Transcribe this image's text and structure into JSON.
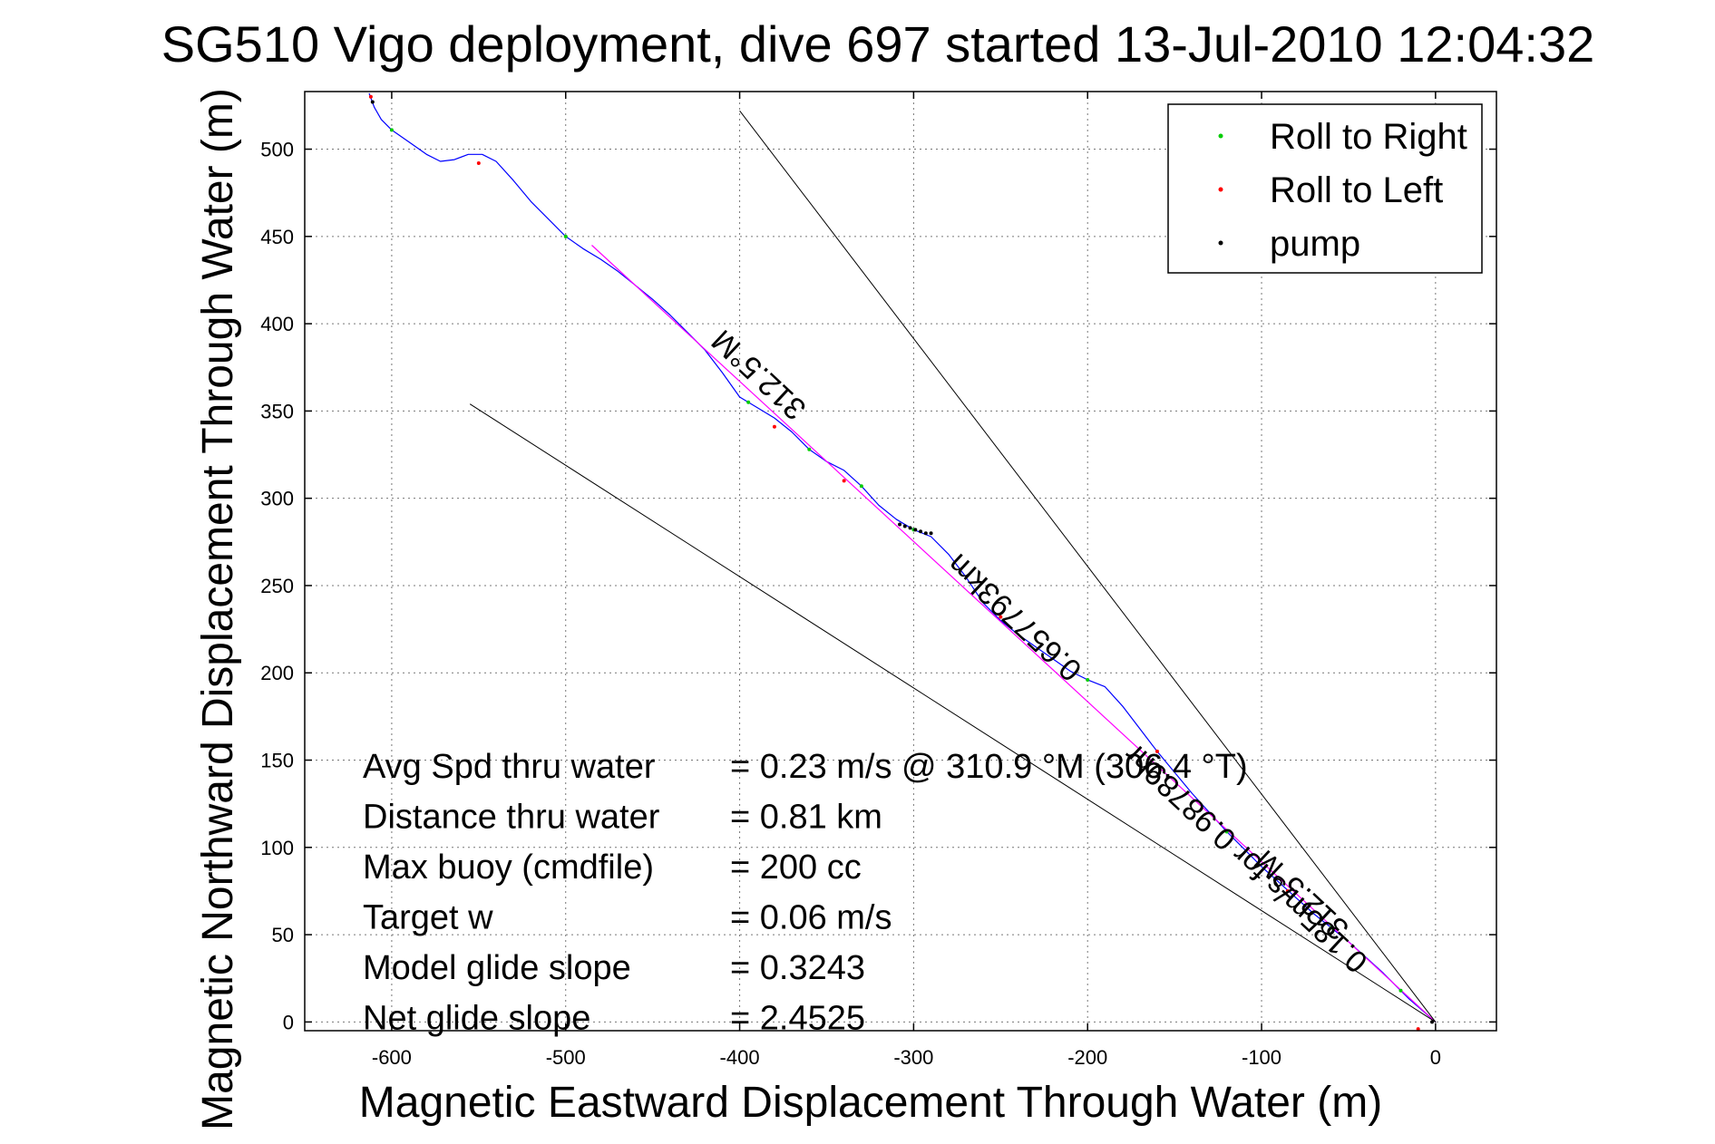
{
  "chart_data": {
    "type": "line",
    "title": "SG510 Vigo deployment, dive 697 started 13-Jul-2010 12:04:32",
    "xlabel": "Magnetic Eastward Displacement Through Water (m)",
    "ylabel": "Magnetic Northward Displacement Through Water (m)",
    "xlim": [
      -650,
      35
    ],
    "ylim": [
      -5,
      533
    ],
    "xticks": [
      -600,
      -500,
      -400,
      -300,
      -200,
      -100,
      0
    ],
    "yticks": [
      0,
      50,
      100,
      150,
      200,
      250,
      300,
      350,
      400,
      450,
      500
    ],
    "xtick_labels": [
      "-600",
      "-500",
      "-400",
      "-300",
      "-200",
      "-100",
      "0"
    ],
    "ytick_labels": [
      "0",
      "50",
      "100",
      "150",
      "200",
      "250",
      "300",
      "350",
      "400",
      "450",
      "500"
    ],
    "grid": true,
    "legend_position": "top-right",
    "legend": [
      {
        "label": "Roll to Right",
        "color": "#00cc00"
      },
      {
        "label": "Roll to Left",
        "color": "#ff0000"
      },
      {
        "label": "pump",
        "color": "#000000"
      }
    ],
    "series": [
      {
        "name": "track",
        "color": "#0000ff",
        "x": [
          0,
          -8,
          -15,
          -22,
          -30,
          -40,
          -50,
          -60,
          -70,
          -80,
          -90,
          -100,
          -110,
          -120,
          -130,
          -140,
          -150,
          -160,
          -170,
          -180,
          -190,
          -200,
          -210,
          -220,
          -230,
          -240,
          -250,
          -260,
          -270,
          -280,
          -290,
          -300,
          -310,
          -320,
          -330,
          -340,
          -350,
          -360,
          -370,
          -380,
          -390,
          -400,
          -410,
          -420,
          -430,
          -440,
          -450,
          -460,
          -470,
          -480,
          -490,
          -500,
          -510,
          -520,
          -530,
          -540,
          -548,
          -556,
          -564,
          -572,
          -580,
          -590,
          -600,
          -606,
          -610,
          -613
        ],
        "y": [
          0,
          7,
          13,
          20,
          28,
          37,
          46,
          54,
          62,
          71,
          80,
          89,
          99,
          109,
          120,
          131,
          143,
          155,
          168,
          181,
          192,
          196,
          201,
          208,
          215,
          222,
          230,
          240,
          255,
          268,
          278,
          282,
          288,
          296,
          307,
          316,
          321,
          328,
          338,
          346,
          352,
          358,
          372,
          385,
          395,
          405,
          414,
          422,
          430,
          437,
          443,
          450,
          460,
          470,
          482,
          493,
          497,
          497,
          494,
          493,
          497,
          504,
          511,
          517,
          524,
          532
        ]
      },
      {
        "name": "mean course",
        "color": "#ff00ff",
        "x": [
          0,
          -485
        ],
        "y": [
          0,
          445
        ]
      },
      {
        "name": "heading limit 1",
        "color": "#000000",
        "x": [
          0,
          -400
        ],
        "y": [
          0,
          522
        ]
      },
      {
        "name": "heading limit 2",
        "color": "#000000",
        "x": [
          0,
          -555
        ],
        "y": [
          0,
          354
        ]
      }
    ],
    "roll_right_points": [
      {
        "x": -20,
        "y": 18
      },
      {
        "x": -60,
        "y": 54
      },
      {
        "x": -120,
        "y": 109
      },
      {
        "x": -200,
        "y": 196
      },
      {
        "x": -300,
        "y": 282
      },
      {
        "x": -330,
        "y": 307
      },
      {
        "x": -360,
        "y": 328
      },
      {
        "x": -395,
        "y": 355
      },
      {
        "x": -500,
        "y": 450
      },
      {
        "x": -600,
        "y": 511
      }
    ],
    "roll_left_points": [
      {
        "x": -10,
        "y": -4
      },
      {
        "x": -85,
        "y": 75
      },
      {
        "x": -160,
        "y": 155
      },
      {
        "x": -250,
        "y": 232
      },
      {
        "x": -340,
        "y": 310
      },
      {
        "x": -380,
        "y": 341
      },
      {
        "x": -550,
        "y": 492
      },
      {
        "x": -612,
        "y": 530
      }
    ],
    "pump_points": [
      {
        "x": -2,
        "y": 0
      },
      {
        "x": -290,
        "y": 280
      },
      {
        "x": -293,
        "y": 280
      },
      {
        "x": -296,
        "y": 281
      },
      {
        "x": -299,
        "y": 282
      },
      {
        "x": -302,
        "y": 283
      },
      {
        "x": -305,
        "y": 284
      },
      {
        "x": -308,
        "y": 285
      },
      {
        "x": -611,
        "y": 527
      }
    ],
    "annotations": [
      {
        "text": "312.5°M",
        "x": -385,
        "y": 375,
        "angle": 43
      },
      {
        "text": "0.657793km",
        "x": -238,
        "y": 236,
        "angle": 43
      },
      {
        "text": "0.185m/s for 0.98789hr",
        "x": -105,
        "y": 98,
        "angle": 43
      },
      {
        "text": "312.5°M",
        "x": -73,
        "y": 77,
        "angle": 43
      }
    ]
  },
  "stats": [
    {
      "label": "Avg Spd thru water",
      "value": "=  0.23 m/s @ 310.9 °M (306.4 °T)"
    },
    {
      "label": "Distance thru water",
      "value": "=  0.81 km"
    },
    {
      "label": "Max buoy (cmdfile)",
      "value": "= 200 cc"
    },
    {
      "label": "Target w",
      "value": "= 0.06 m/s"
    },
    {
      "label": "Model glide slope",
      "value": "= 0.3243"
    },
    {
      "label": "Net glide slope",
      "value": "= 2.4525"
    }
  ]
}
